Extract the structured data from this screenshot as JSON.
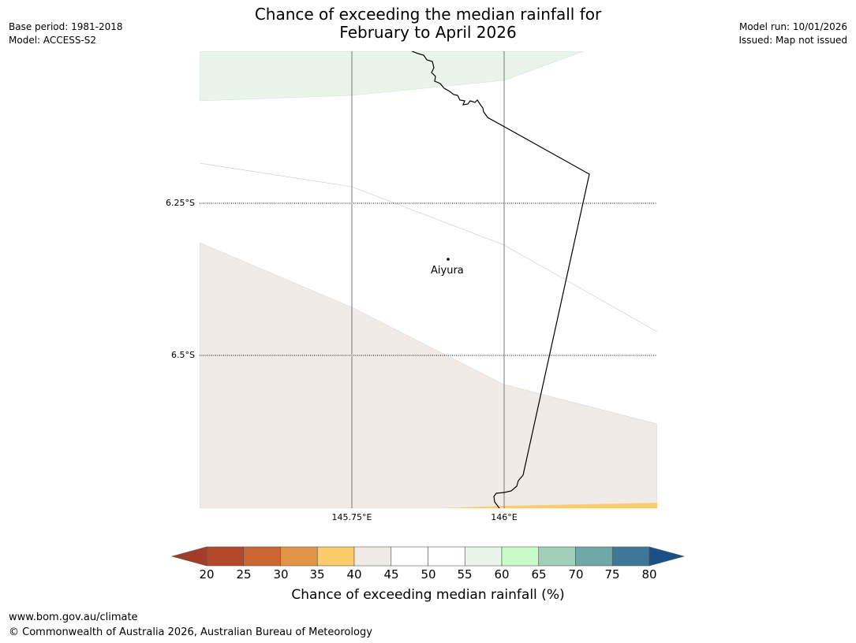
{
  "title": {
    "line1": "Chance of exceeding the median rainfall for",
    "line2": "February to April 2026"
  },
  "meta_left": {
    "base_period": "Base period: 1981-2018",
    "model": "Model: ACCESS-S2"
  },
  "meta_right": {
    "model_run": "Model run: 10/01/2026",
    "issued": "Issued: Map not issued"
  },
  "map": {
    "latitude_labels": [
      "6.25°S",
      "6.5°S"
    ],
    "longitude_labels": [
      "145.75°E",
      "146°E"
    ],
    "place": "Aiyura"
  },
  "colorbar": {
    "ticks": [
      "20",
      "25",
      "30",
      "35",
      "40",
      "45",
      "50",
      "55",
      "60",
      "65",
      "70",
      "75",
      "80"
    ],
    "colors": [
      "#a03c28",
      "#b4482a",
      "#cc6632",
      "#e29446",
      "#fdcc6a",
      "#f0ebe6",
      "#ffffff",
      "#ffffff",
      "#e9f5e9",
      "#c8fbc8",
      "#a0d0b8",
      "#70a8a8",
      "#3e7898",
      "#1a5088"
    ],
    "title": "Chance of exceeding median rainfall (%)"
  },
  "footer": {
    "url": "www.bom.gov.au/climate",
    "copyright": "© Commonwealth of Australia 2026, Australian Bureau of Meteorology"
  }
}
